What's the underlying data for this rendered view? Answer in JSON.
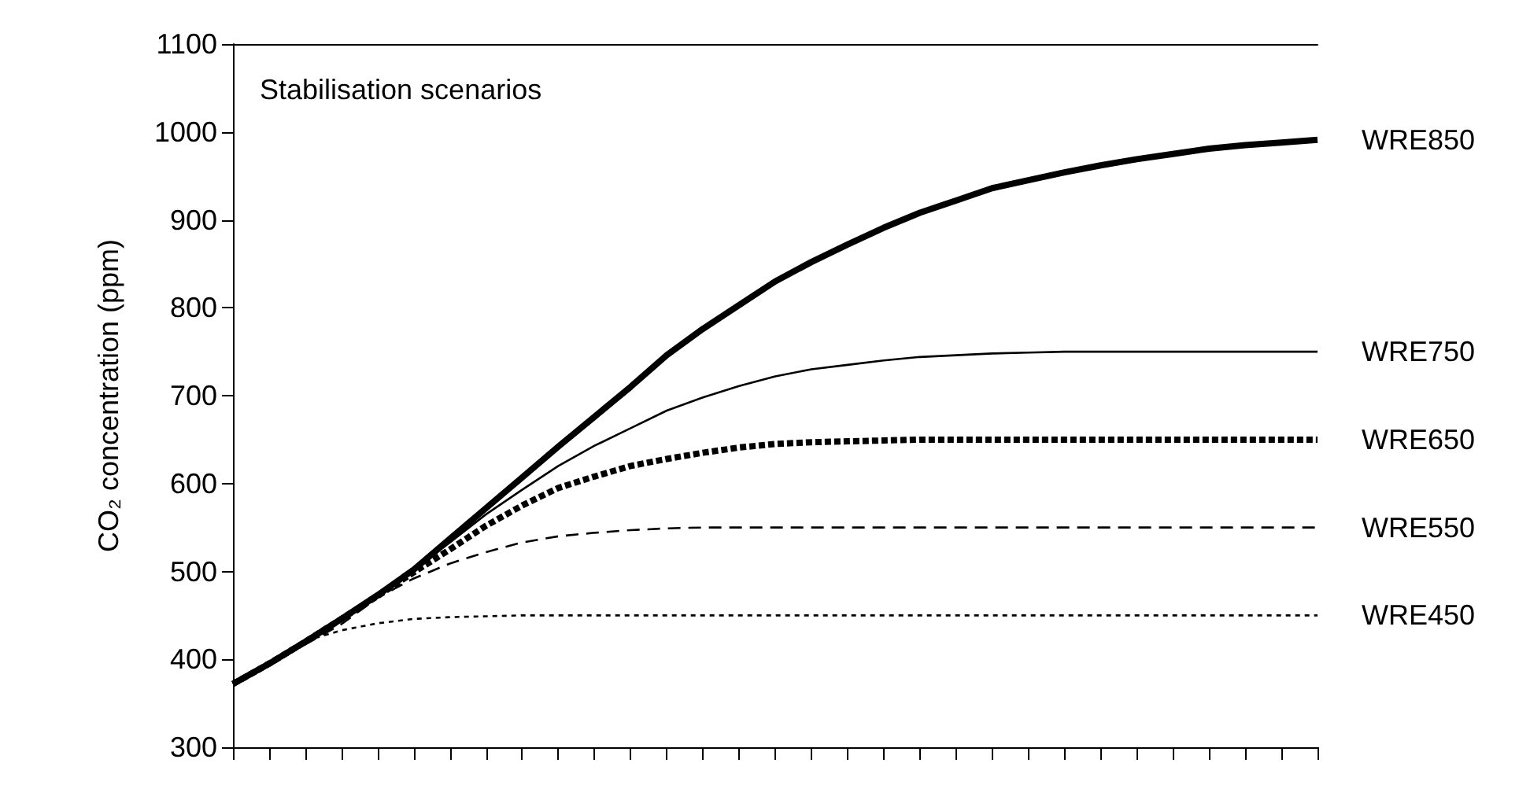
{
  "chart_data": {
    "type": "line",
    "ylabel": "CO₂ concentration (ppm)",
    "annotations": [
      "Stabilisation scenarios"
    ],
    "categories": [
      null,
      null,
      null,
      null,
      null,
      null,
      null,
      null,
      null,
      null,
      null,
      null,
      null,
      null,
      null,
      null,
      null,
      null,
      null,
      null,
      null,
      null,
      null,
      null,
      null,
      null,
      null,
      null,
      null,
      null,
      null
    ],
    "ylim": [
      300,
      1100
    ],
    "yticks": [
      300,
      400,
      500,
      600,
      700,
      800,
      900,
      1000,
      1100
    ],
    "grid": false,
    "legend": false,
    "marker": "none",
    "tick_labels": "y",
    "series": [
      {
        "name": "WRE850",
        "color": "#000000",
        "line_style": "solid",
        "values": [
          372,
          395,
          420,
          446,
          473,
          502,
          537,
          572,
          607,
          642,
          676,
          710,
          746,
          776,
          803,
          830,
          852,
          872,
          891,
          908,
          922,
          936,
          945,
          954,
          962,
          969,
          975,
          981,
          985,
          988,
          991
        ]
      },
      {
        "name": "WRE750",
        "color": "#000000",
        "line_style": "solid",
        "values": [
          372,
          395,
          420,
          446,
          473,
          502,
          533,
          565,
          593,
          620,
          643,
          663,
          683,
          698,
          711,
          722,
          730,
          735,
          740,
          744,
          746,
          748,
          749,
          750,
          750,
          750,
          750,
          750,
          750,
          750,
          750
        ]
      },
      {
        "name": "WRE650",
        "color": "#000000",
        "line_style": "dashed",
        "values": [
          372,
          395,
          420,
          446,
          472,
          499,
          525,
          552,
          575,
          595,
          608,
          620,
          628,
          635,
          641,
          645,
          647,
          648,
          649,
          650,
          650,
          650,
          650,
          650,
          650,
          650,
          650,
          650,
          650,
          650,
          650
        ]
      },
      {
        "name": "WRE550",
        "color": "#000000",
        "line_style": "dashed",
        "values": [
          372,
          394,
          417,
          440,
          470,
          492,
          509,
          522,
          533,
          540,
          544,
          547,
          549,
          550,
          550,
          550,
          550,
          550,
          550,
          550,
          550,
          550,
          550,
          550,
          550,
          550,
          550,
          550,
          550,
          550,
          550
        ]
      },
      {
        "name": "WRE450",
        "color": "#000000",
        "line_style": "dotted",
        "values": [
          372,
          398,
          421,
          433,
          441,
          446,
          448,
          449,
          450,
          450,
          450,
          450,
          450,
          450,
          450,
          450,
          450,
          450,
          450,
          450,
          450,
          450,
          450,
          450,
          450,
          450,
          450,
          450,
          450,
          450,
          450
        ]
      }
    ]
  }
}
